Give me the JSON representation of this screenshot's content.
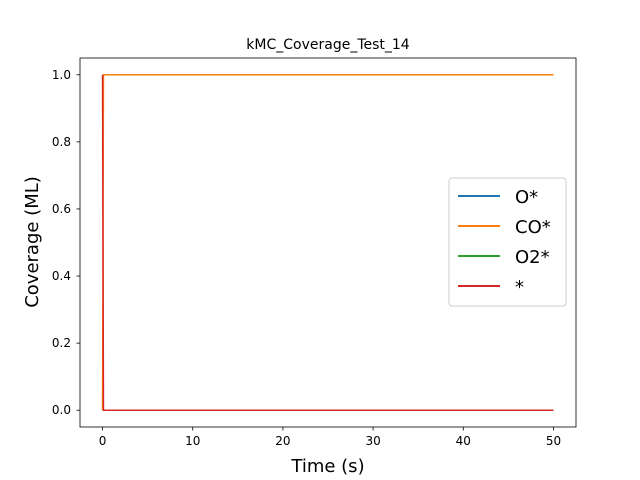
{
  "chart_data": {
    "type": "line",
    "title": "kMC_Coverage_Test_14",
    "xlabel": "Time (s)",
    "ylabel": "Coverage (ML)",
    "xlim": [
      -2.5,
      52.5
    ],
    "ylim": [
      -0.05,
      1.05
    ],
    "xticks": [
      0,
      10,
      20,
      30,
      40,
      50
    ],
    "xtick_labels": [
      "0",
      "10",
      "20",
      "30",
      "40",
      "50"
    ],
    "yticks": [
      0.0,
      0.2,
      0.4,
      0.6,
      0.8,
      1.0
    ],
    "ytick_labels": [
      "0.0",
      "0.2",
      "0.4",
      "0.6",
      "0.8",
      "1.0"
    ],
    "grid": false,
    "legend_position": "center-right",
    "series": [
      {
        "name": "O*",
        "color": "#1f77b4",
        "x": [
          0,
          0.1,
          50
        ],
        "y": [
          0.0,
          0.0,
          0.0
        ]
      },
      {
        "name": "CO*",
        "color": "#ff7f0e",
        "x": [
          0,
          0.1,
          50
        ],
        "y": [
          0.0,
          1.0,
          1.0
        ]
      },
      {
        "name": "O2*",
        "color": "#2ca02c",
        "x": [
          0,
          0.1,
          50
        ],
        "y": [
          0.0,
          0.0,
          0.0
        ]
      },
      {
        "name": "*",
        "color": "#d62728",
        "x": [
          0,
          0.1,
          50
        ],
        "y": [
          1.0,
          0.0,
          0.0
        ]
      }
    ]
  }
}
